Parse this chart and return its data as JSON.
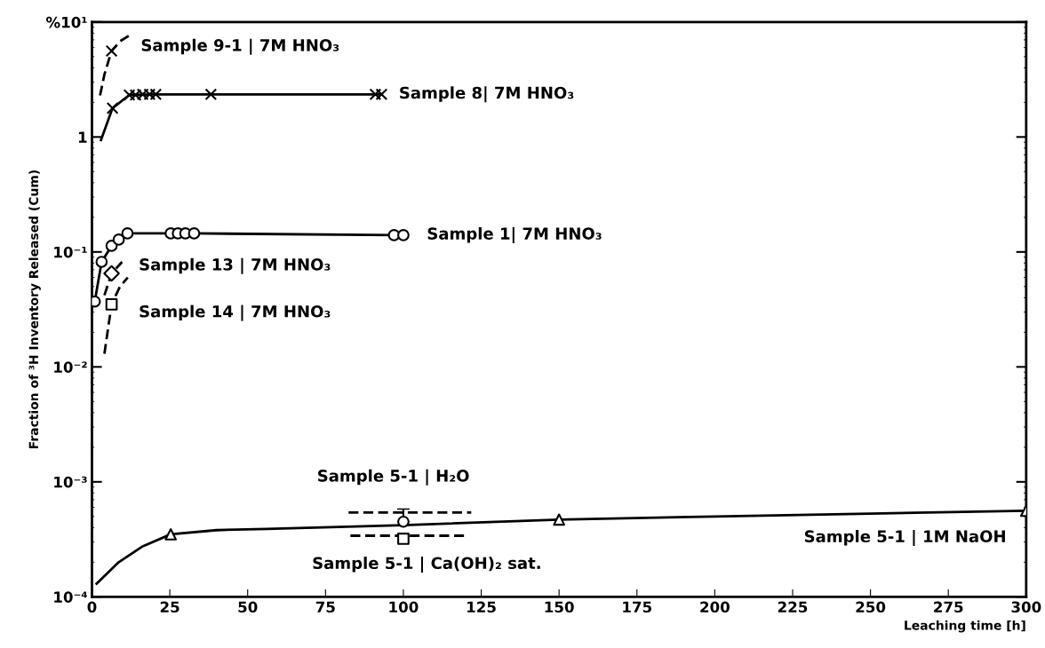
{
  "chart_data": {
    "type": "line",
    "xlabel": "Leaching time [h]",
    "ylabel": "Fraction of ³H Inventory Released (Cum)",
    "log": "y",
    "grid": false,
    "xlim": [
      0,
      300
    ],
    "xticks": [
      0,
      25,
      50,
      75,
      100,
      125,
      150,
      175,
      200,
      225,
      250,
      275,
      300
    ],
    "ylim": [
      0.0001,
      10
    ],
    "yticks": [
      {
        "value": 0.0001,
        "label": "10⁻⁴"
      },
      {
        "value": 0.001,
        "label": "10⁻³"
      },
      {
        "value": 0.01,
        "label": "10⁻²"
      },
      {
        "value": 0.1,
        "label": "10⁻¹"
      },
      1,
      {
        "value": 10,
        "label": "%10¹"
      }
    ],
    "series": [
      {
        "type": "line",
        "line_style": "dashed",
        "color": "#000000",
        "x": [
          2.6,
          4,
          6.3,
          9,
          12.5
        ],
        "values": [
          2.3,
          3.5,
          5.6,
          6.8,
          7.8
        ]
      },
      {
        "type": "scatter",
        "marker": "cross",
        "color": "#000000",
        "x": [
          6.3
        ],
        "values": [
          5.6
        ]
      },
      {
        "type": "line",
        "line_style": "solid",
        "color": "#000000",
        "x": [
          2.9,
          6.6,
          12,
          20.5,
          38.2,
          93
        ],
        "values": [
          0.94,
          1.78,
          2.32,
          2.35,
          2.35,
          2.35
        ]
      },
      {
        "type": "scatter",
        "marker": "cross",
        "color": "#000000",
        "x": [
          6.6,
          12,
          14,
          16.3,
          18.5,
          20.5,
          38.2,
          91,
          93
        ],
        "values": [
          1.78,
          2.32,
          2.32,
          2.35,
          2.35,
          2.35,
          2.35,
          2.35,
          2.35
        ]
      },
      {
        "type": "line",
        "line_style": "solid",
        "color": "#000000",
        "x": [
          0.9,
          3.1,
          6.3,
          8.6,
          11.4,
          25.3,
          32.8,
          97,
          100
        ],
        "values": [
          0.037,
          0.082,
          0.113,
          0.128,
          0.145,
          0.145,
          0.145,
          0.14,
          0.14
        ]
      },
      {
        "type": "scatter",
        "marker": "circle",
        "color": "#000000",
        "x": [
          0.9,
          3.1,
          6.3,
          8.6,
          11.4,
          25.3,
          27.6,
          30,
          32.8,
          97,
          100
        ],
        "values": [
          0.037,
          0.082,
          0.113,
          0.128,
          0.145,
          0.145,
          0.145,
          0.145,
          0.145,
          0.14,
          0.14
        ]
      },
      {
        "type": "line",
        "line_style": "dashed",
        "color": "#000000",
        "x": [
          4,
          6.3,
          9.7
        ],
        "values": [
          0.042,
          0.065,
          0.082
        ]
      },
      {
        "type": "scatter",
        "marker": "diamond",
        "color": "#000000",
        "x": [
          6.3
        ],
        "values": [
          0.065
        ]
      },
      {
        "type": "line",
        "line_style": "dashed",
        "color": "#000000",
        "x": [
          4,
          5,
          6.3,
          9,
          11.5
        ],
        "values": [
          0.013,
          0.02,
          0.035,
          0.05,
          0.06
        ]
      },
      {
        "type": "scatter",
        "marker": "square",
        "color": "#000000",
        "x": [
          6.3
        ],
        "values": [
          0.035
        ]
      },
      {
        "type": "line",
        "line_style": "solid",
        "color": "#000000",
        "x": [
          1.5,
          8.6,
          16.3,
          25.3,
          40,
          56,
          100,
          150,
          200,
          250,
          300
        ],
        "values": [
          0.00013,
          0.0002,
          0.000275,
          0.00035,
          0.00038,
          0.00039,
          0.00042,
          0.00047,
          0.0005,
          0.00053,
          0.00056
        ]
      },
      {
        "type": "scatter",
        "marker": "triangle",
        "color": "#000000",
        "x": [
          25.3,
          150,
          300
        ],
        "values": [
          0.00035,
          0.00047,
          0.00056
        ]
      },
      {
        "type": "line",
        "line_style": "dashed",
        "color": "#000000",
        "x": [
          82.4,
          121.8
        ],
        "values": [
          0.00054,
          0.00054
        ]
      },
      {
        "type": "scatter",
        "marker": "circle",
        "color": "#000000",
        "x": [
          100
        ],
        "values": [
          0.00045
        ],
        "errors": [
          [
            0.00045,
            0.00058
          ]
        ]
      },
      {
        "type": "line",
        "line_style": "dashed",
        "color": "#000000",
        "x": [
          83,
          120
        ],
        "values": [
          0.00034,
          0.00034
        ]
      },
      {
        "type": "scatter",
        "marker": "square",
        "color": "#000000",
        "x": [
          100
        ],
        "values": [
          0.00032
        ]
      }
    ],
    "annotations": [
      {
        "text": "Sample 9-1 | 7M HNO₃",
        "x": 12.5,
        "y": 7.8
      },
      {
        "text": "Sample 8| 7M HNO₃",
        "x": 93,
        "y": 2.35
      },
      {
        "text": "Sample 1| 7M HNO₃",
        "x": 100,
        "y": 0.14
      },
      {
        "text": "Sample 13 | 7M HNO₃",
        "x": 6.3,
        "y": 0.065
      },
      {
        "text": "Sample 14 | 7M HNO₃",
        "x": 6.3,
        "y": 0.035
      },
      {
        "text": "Sample 5-1 | H₂O",
        "x": 100,
        "y": 0.00045
      },
      {
        "text": "Sample 5-1 | Ca(OH)₂ sat.",
        "x": 100,
        "y": 0.00032
      },
      {
        "text": "Sample 5-1 | 1M NaOH",
        "x": 300,
        "y": 0.00056
      }
    ]
  }
}
